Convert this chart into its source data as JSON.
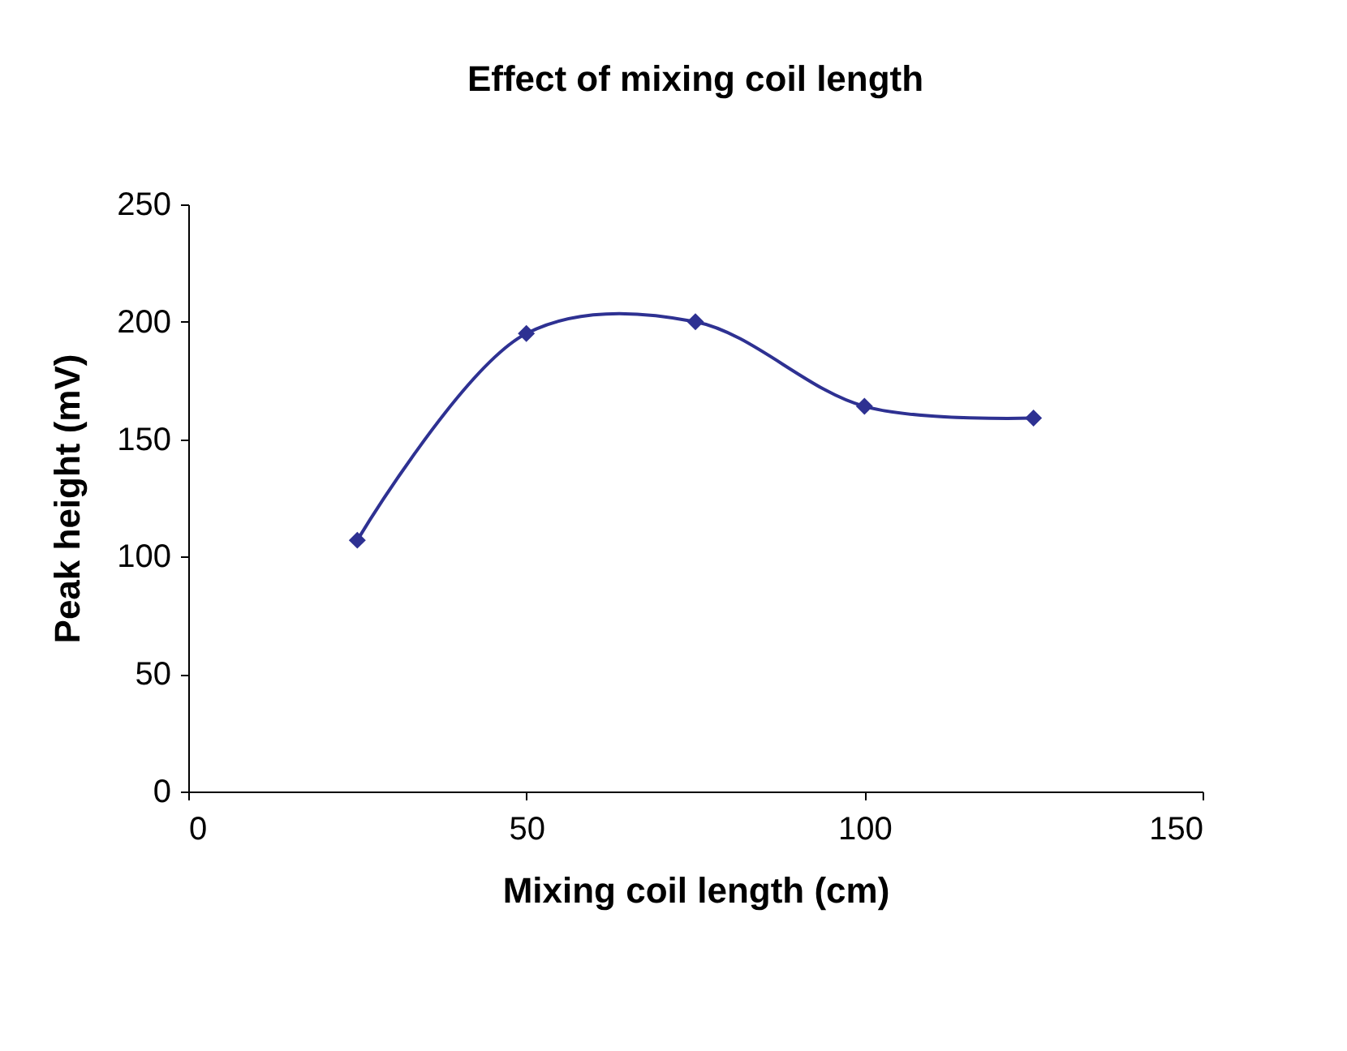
{
  "chart_data": {
    "type": "line",
    "title": "Effect of mixing coil length",
    "xlabel": "Mixing coil length (cm)",
    "ylabel": "Peak height (mV)",
    "x": [
      25,
      50,
      75,
      100,
      125
    ],
    "series": [
      {
        "color": "#2e3192",
        "values": [
          107,
          195,
          200,
          164,
          159
        ]
      }
    ],
    "xlim": [
      0,
      150
    ],
    "xticks": [
      0,
      50,
      100,
      150
    ],
    "ylim": [
      0,
      250
    ],
    "yticks": [
      0,
      50,
      100,
      150,
      200,
      250
    ],
    "grid": false,
    "marker": "diamond",
    "line_style": "solid"
  }
}
